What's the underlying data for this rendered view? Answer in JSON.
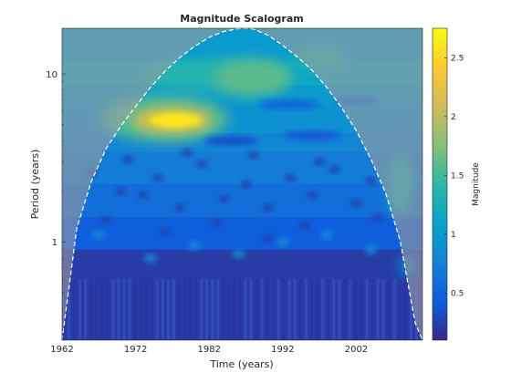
{
  "chart_data": {
    "type": "heatmap",
    "title": "Magnitude Scalogram",
    "xlabel": "Time (years)",
    "ylabel": "Period (years)",
    "colorbar_label": "Magnitude",
    "x_ticks": [
      1962,
      1972,
      1982,
      1992,
      2002
    ],
    "y_ticks": [
      {
        "value": 1,
        "label": "1"
      },
      {
        "value": 10,
        "label": "10"
      }
    ],
    "xlim": [
      1962,
      2011
    ],
    "ylim_log": [
      0.26,
      18.7
    ],
    "y_scale": "log",
    "clim": [
      0.1,
      2.75
    ],
    "colorbar_ticks": [
      0.5,
      1,
      1.5,
      2,
      2.5
    ],
    "colormap": "parula",
    "cone_of_influence": {
      "years": [
        1962,
        1964,
        1966,
        1968,
        1970,
        1972,
        1974,
        1976,
        1978,
        1980,
        1982,
        1984,
        1986,
        1987,
        1988,
        1990,
        1992,
        1994,
        1996,
        1998,
        2000,
        2002,
        2004,
        2006,
        2008,
        2010,
        2011
      ],
      "period": [
        0.26,
        1.2,
        2.3,
        3.6,
        4.9,
        6.4,
        8.3,
        10.4,
        12.5,
        14.6,
        16.5,
        17.9,
        18.6,
        18.7,
        18.5,
        17.0,
        14.8,
        12.6,
        10.5,
        8.3,
        6.3,
        4.6,
        3.1,
        1.95,
        1.0,
        0.33,
        0.26
      ]
    },
    "features": [
      {
        "label": "peak",
        "year": 1977,
        "period": 5.3,
        "magnitude": 2.6
      },
      {
        "label": "band",
        "year": 1987,
        "period": 9.5,
        "magnitude": 1.55
      }
    ]
  }
}
